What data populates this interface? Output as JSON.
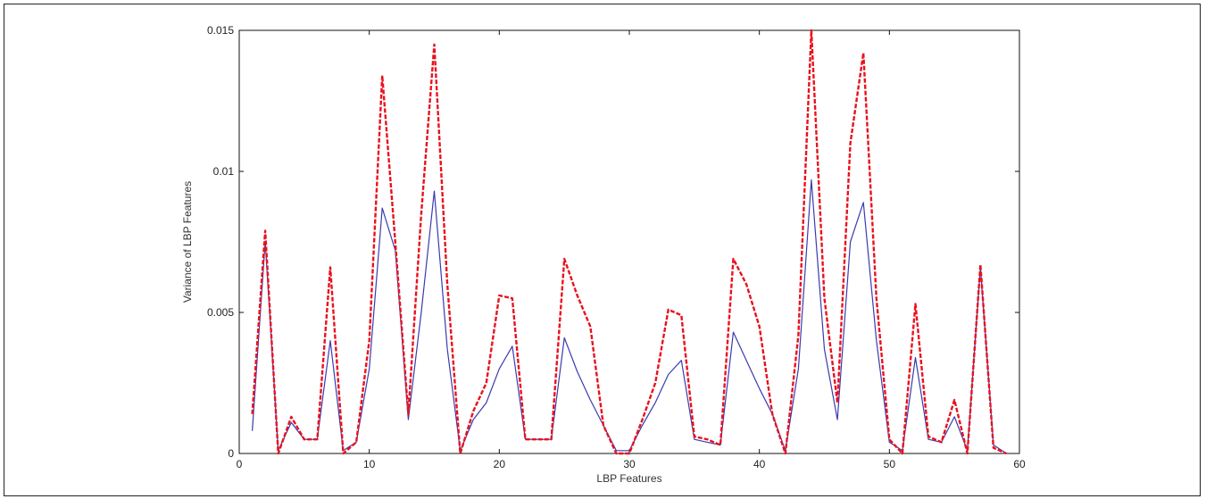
{
  "chart_data": {
    "type": "line",
    "xlabel": "LBP Features",
    "ylabel": "Variance of LBP Features",
    "xlim": [
      0,
      60
    ],
    "ylim": [
      0,
      0.015
    ],
    "xticks": [
      0,
      10,
      20,
      30,
      40,
      50,
      60
    ],
    "yticks": [
      0,
      0.005,
      0.01,
      0.015
    ],
    "ytick_labels": [
      "0",
      "0.005",
      "0.01",
      "0.015"
    ],
    "grid": false,
    "x": [
      1,
      2,
      3,
      4,
      5,
      6,
      7,
      8,
      9,
      10,
      11,
      12,
      13,
      14,
      15,
      16,
      17,
      18,
      19,
      20,
      21,
      22,
      23,
      24,
      25,
      26,
      27,
      28,
      29,
      30,
      31,
      32,
      33,
      34,
      35,
      36,
      37,
      38,
      39,
      40,
      41,
      42,
      43,
      44,
      45,
      46,
      47,
      48,
      49,
      50,
      51,
      52,
      53,
      54,
      55,
      56,
      57,
      58,
      59
    ],
    "series": [
      {
        "style": "solid",
        "color": "#3a3ab0",
        "values": [
          0.0008,
          0.0075,
          0.0001,
          0.0011,
          0.0005,
          0.0005,
          0.004,
          0.0001,
          0.0004,
          0.003,
          0.0087,
          0.0072,
          0.0012,
          0.005,
          0.0093,
          0.0037,
          0.0001,
          0.0012,
          0.0018,
          0.003,
          0.0038,
          0.0005,
          0.0005,
          0.0005,
          0.0041,
          0.0029,
          0.0019,
          0.001,
          0.0001,
          0.0001,
          0.001,
          0.0018,
          0.0028,
          0.0033,
          0.0005,
          0.0004,
          0.0003,
          0.0043,
          0.0033,
          0.0023,
          0.0014,
          0.0001,
          0.003,
          0.0097,
          0.0037,
          0.0012,
          0.0075,
          0.0089,
          0.004,
          0.0004,
          0.0001,
          0.0034,
          0.0005,
          0.0004,
          0.0013,
          0.0001,
          0.0066,
          0.0003,
          0.0
        ]
      },
      {
        "style": "dashed",
        "color": "#e8121e",
        "values": [
          0.0014,
          0.0079,
          0.0,
          0.0013,
          0.0005,
          0.0005,
          0.0066,
          0.0,
          0.0004,
          0.004,
          0.0134,
          0.0075,
          0.0014,
          0.0085,
          0.0145,
          0.006,
          0.0,
          0.0015,
          0.0025,
          0.0056,
          0.0055,
          0.0005,
          0.0005,
          0.0005,
          0.0069,
          0.0056,
          0.0045,
          0.001,
          0.0,
          0.0,
          0.0012,
          0.0025,
          0.0051,
          0.0049,
          0.0006,
          0.0005,
          0.0003,
          0.0069,
          0.006,
          0.0045,
          0.0014,
          0.0,
          0.0042,
          0.015,
          0.0055,
          0.0018,
          0.011,
          0.0142,
          0.0055,
          0.0005,
          0.0,
          0.0053,
          0.0006,
          0.0004,
          0.0019,
          0.0,
          0.0067,
          0.0002,
          0.0
        ]
      }
    ]
  }
}
